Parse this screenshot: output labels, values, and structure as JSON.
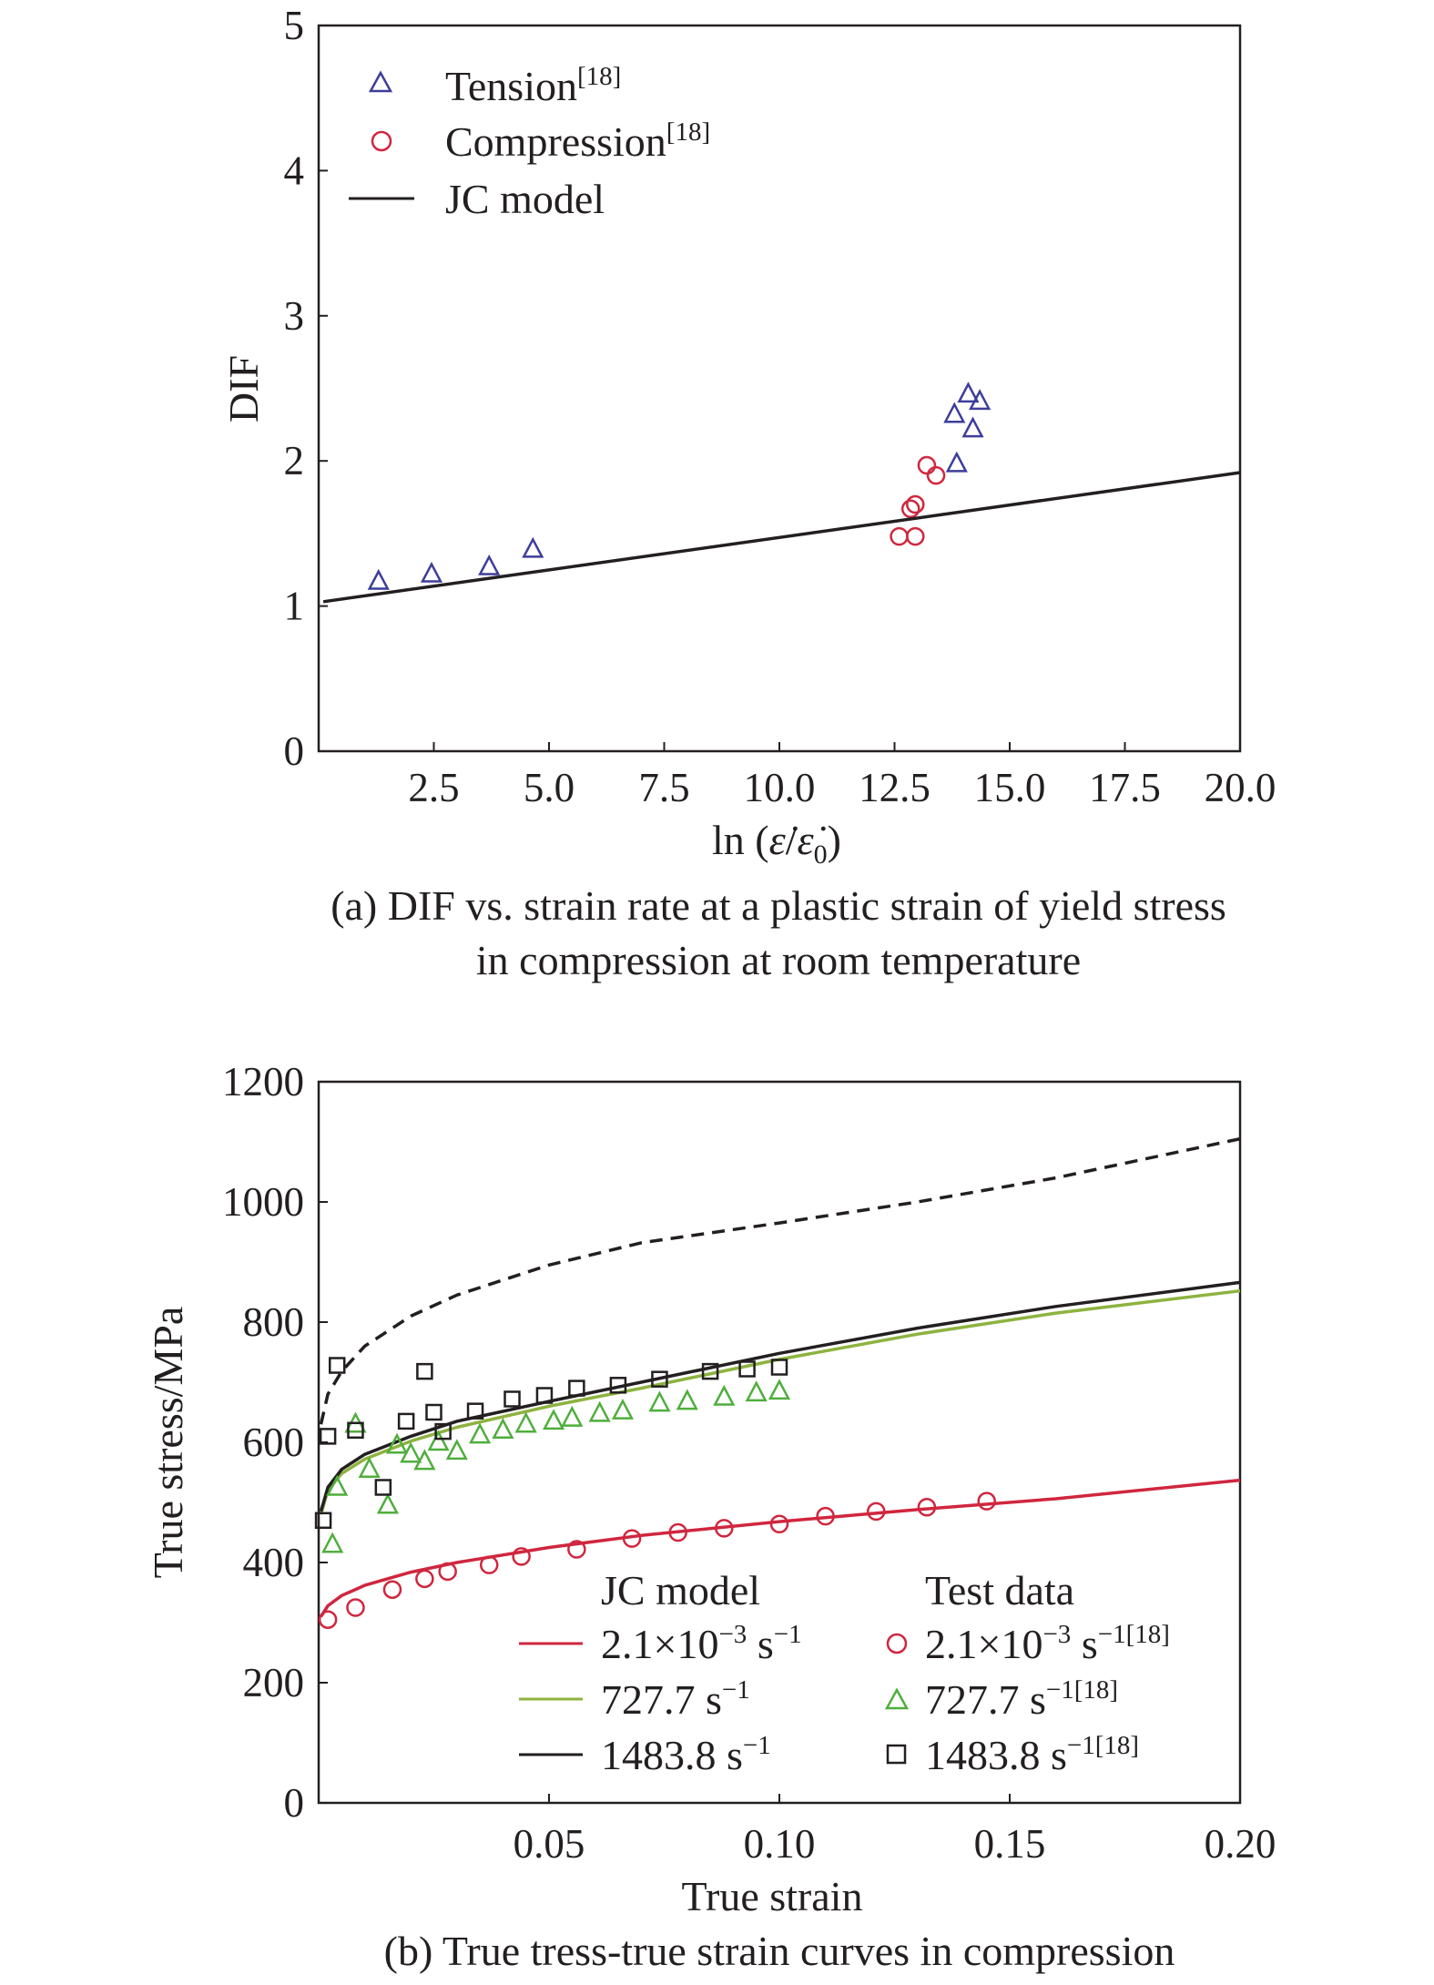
{
  "chart_data": [
    {
      "type": "scatter",
      "xlabel_prefix": "ln (",
      "xlabel_num": "ε̇",
      "xlabel_sep": "/",
      "xlabel_den": "ε̇",
      "xlabel_sub": "0",
      "xlabel_suffix": ")",
      "ylabel": "DIF",
      "xlim": [
        0,
        20
      ],
      "ylim": [
        0,
        5
      ],
      "xticks": [
        "2.5",
        "5.0",
        "7.5",
        "10.0",
        "12.5",
        "15.0",
        "17.5",
        "20.0"
      ],
      "xtick_values": [
        2.5,
        5,
        7.5,
        10,
        12.5,
        15,
        17.5,
        20
      ],
      "yticks": [
        "0",
        "1",
        "2",
        "3",
        "4",
        "5"
      ],
      "ytick_values": [
        0,
        1,
        2,
        3,
        4,
        5
      ],
      "caption_line1": "(a) DIF vs. strain rate at a plastic strain of yield stress",
      "caption_line2": "in compression at room temperature",
      "legend": [
        {
          "label": "Tension",
          "ref": "[18]",
          "marker": "triangle"
        },
        {
          "label": "Compression",
          "ref": "[18]",
          "marker": "circle"
        },
        {
          "label": "JC model",
          "ref": "",
          "marker": "line"
        }
      ],
      "series": [
        {
          "name": "Tension",
          "marker": "triangle",
          "color": "#3d3d9b",
          "points": [
            [
              1.3,
              1.17
            ],
            [
              2.45,
              1.22
            ],
            [
              3.7,
              1.27
            ],
            [
              4.65,
              1.39
            ],
            [
              13.85,
              1.98
            ],
            [
              13.8,
              2.32
            ],
            [
              14.1,
              2.46
            ],
            [
              14.35,
              2.41
            ],
            [
              14.2,
              2.22
            ]
          ]
        },
        {
          "name": "Compression",
          "marker": "circle",
          "color": "#d0263e",
          "points": [
            [
              12.6,
              1.48
            ],
            [
              12.95,
              1.48
            ],
            [
              12.85,
              1.67
            ],
            [
              12.95,
              1.7
            ],
            [
              13.2,
              1.97
            ],
            [
              13.4,
              1.9
            ]
          ]
        },
        {
          "name": "JC model",
          "marker": "line",
          "color": "#231f20",
          "points": [
            [
              0.1,
              1.03
            ],
            [
              20,
              1.92
            ]
          ]
        }
      ]
    },
    {
      "type": "line",
      "xlabel": "True strain",
      "ylabel": "True stress/MPa",
      "xlim": [
        0,
        0.2
      ],
      "ylim": [
        0,
        1200
      ],
      "xticks": [
        "0.05",
        "0.10",
        "0.15",
        "0.20"
      ],
      "xtick_values": [
        0.05,
        0.1,
        0.15,
        0.2
      ],
      "yticks": [
        "0",
        "200",
        "400",
        "600",
        "800",
        "1000",
        "1200"
      ],
      "ytick_values": [
        0,
        200,
        400,
        600,
        800,
        1000,
        1200
      ],
      "caption": "(b) True tress-true strain curves in compression",
      "legend_col1_title": "JC model",
      "legend_col2_title": "Test data",
      "legend_model": [
        {
          "prefix": "2.1×10",
          "exp": "−3",
          "unit": " s",
          "unit_exp": "−1",
          "color": "#d0263e"
        },
        {
          "prefix": "727.7",
          "exp": "",
          "unit": " s",
          "unit_exp": "−1",
          "color": "#8db33f"
        },
        {
          "prefix": "1483.8",
          "exp": "",
          "unit": " s",
          "unit_exp": "−1",
          "color": "#231f20"
        }
      ],
      "legend_test": [
        {
          "prefix": "2.1×10",
          "exp": "−3",
          "unit": " s",
          "unit_exp": "−1[18]",
          "marker": "circle",
          "color": "#d0263e"
        },
        {
          "prefix": "727.7",
          "exp": "",
          "unit": " s",
          "unit_exp": "−1[18]",
          "marker": "triangle",
          "color": "#4fae3c"
        },
        {
          "prefix": "1483.8",
          "exp": "",
          "unit": " s",
          "unit_exp": "−1[18]",
          "marker": "square",
          "color": "#231f20"
        }
      ],
      "curves": [
        {
          "name": "2.1×10−3 s−1",
          "style": "solid",
          "color": "#d0263e",
          "points": [
            [
              0.0005,
              310
            ],
            [
              0.002,
              328
            ],
            [
              0.005,
              345
            ],
            [
              0.01,
              362
            ],
            [
              0.02,
              384
            ],
            [
              0.03,
              400
            ],
            [
              0.05,
              425
            ],
            [
              0.07,
              445
            ],
            [
              0.1,
              468
            ],
            [
              0.13,
              488
            ],
            [
              0.16,
              506
            ],
            [
              0.2,
              537
            ]
          ]
        },
        {
          "name": "727.7 s−1",
          "style": "solid",
          "color": "#8db33f",
          "points": [
            [
              0.0005,
              480
            ],
            [
              0.002,
              520
            ],
            [
              0.005,
              548
            ],
            [
              0.01,
              572
            ],
            [
              0.02,
              602
            ],
            [
              0.03,
              625
            ],
            [
              0.05,
              660
            ],
            [
              0.07,
              690
            ],
            [
              0.1,
              738
            ],
            [
              0.13,
              780
            ],
            [
              0.16,
              815
            ],
            [
              0.2,
              852
            ]
          ]
        },
        {
          "name": "1483.8 s−1",
          "style": "solid",
          "color": "#231f20",
          "points": [
            [
              0.0005,
              485
            ],
            [
              0.002,
              525
            ],
            [
              0.005,
              555
            ],
            [
              0.01,
              580
            ],
            [
              0.02,
              610
            ],
            [
              0.03,
              635
            ],
            [
              0.05,
              668
            ],
            [
              0.07,
              700
            ],
            [
              0.1,
              748
            ],
            [
              0.13,
              790
            ],
            [
              0.16,
              826
            ],
            [
              0.2,
              866
            ]
          ]
        },
        {
          "name": "",
          "style": "dashed",
          "color": "#231f20",
          "points": [
            [
              0.0005,
              630
            ],
            [
              0.002,
              680
            ],
            [
              0.005,
              718
            ],
            [
              0.01,
              760
            ],
            [
              0.02,
              810
            ],
            [
              0.03,
              845
            ],
            [
              0.05,
              895
            ],
            [
              0.07,
              932
            ],
            [
              0.1,
              965
            ],
            [
              0.13,
              1000
            ],
            [
              0.16,
              1040
            ],
            [
              0.2,
              1105
            ]
          ]
        }
      ],
      "series": [
        {
          "name": "2.1×10−3 s−1",
          "marker": "circle",
          "color": "#d0263e",
          "points": [
            [
              0.002,
              305
            ],
            [
              0.008,
              325
            ],
            [
              0.016,
              355
            ],
            [
              0.023,
              373
            ],
            [
              0.028,
              385
            ],
            [
              0.037,
              396
            ],
            [
              0.044,
              410
            ],
            [
              0.056,
              422
            ],
            [
              0.068,
              440
            ],
            [
              0.078,
              450
            ],
            [
              0.088,
              457
            ],
            [
              0.1,
              464
            ],
            [
              0.11,
              477
            ],
            [
              0.121,
              485
            ],
            [
              0.132,
              492
            ],
            [
              0.145,
              502
            ]
          ]
        },
        {
          "name": "727.7 s−1",
          "marker": "triangle",
          "color": "#4fae3c",
          "points": [
            [
              0.003,
              430
            ],
            [
              0.004,
              525
            ],
            [
              0.008,
              630
            ],
            [
              0.011,
              555
            ],
            [
              0.015,
              495
            ],
            [
              0.017,
              595
            ],
            [
              0.02,
              580
            ],
            [
              0.023,
              568
            ],
            [
              0.026,
              600
            ],
            [
              0.03,
              585
            ],
            [
              0.035,
              612
            ],
            [
              0.04,
              620
            ],
            [
              0.045,
              630
            ],
            [
              0.051,
              635
            ],
            [
              0.055,
              640
            ],
            [
              0.061,
              648
            ],
            [
              0.066,
              652
            ],
            [
              0.074,
              665
            ],
            [
              0.08,
              668
            ],
            [
              0.088,
              675
            ],
            [
              0.095,
              682
            ],
            [
              0.1,
              685
            ]
          ]
        },
        {
          "name": "1483.8 s−1",
          "marker": "square",
          "color": "#231f20",
          "points": [
            [
              0.001,
              470
            ],
            [
              0.002,
              610
            ],
            [
              0.004,
              728
            ],
            [
              0.008,
              620
            ],
            [
              0.014,
              525
            ],
            [
              0.019,
              635
            ],
            [
              0.023,
              718
            ],
            [
              0.025,
              650
            ],
            [
              0.027,
              618
            ],
            [
              0.034,
              652
            ],
            [
              0.042,
              672
            ],
            [
              0.049,
              678
            ],
            [
              0.056,
              690
            ],
            [
              0.065,
              695
            ],
            [
              0.074,
              705
            ],
            [
              0.085,
              718
            ],
            [
              0.093,
              722
            ],
            [
              0.1,
              725
            ]
          ]
        }
      ]
    }
  ]
}
